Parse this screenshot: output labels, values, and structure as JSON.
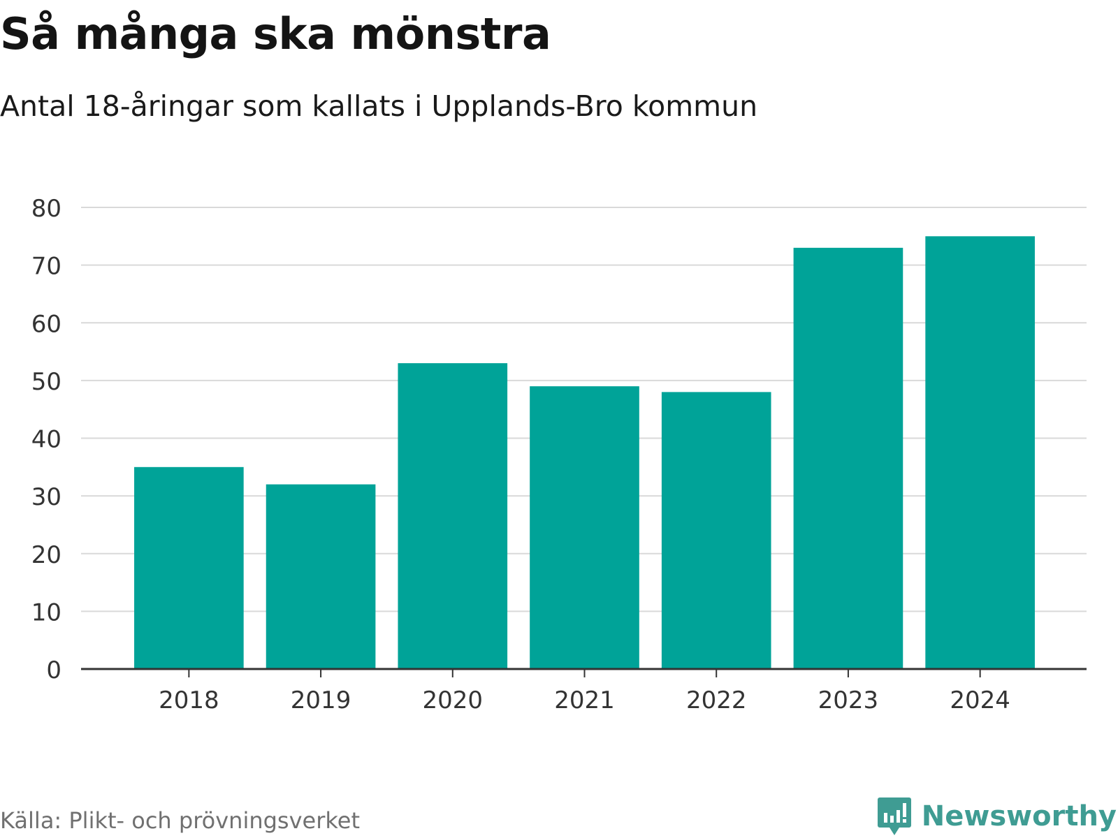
{
  "title": "Så många ska mönstra",
  "subtitle": "Antal 18-åringar som kallats i Upplands-Bro kommun",
  "source": "Källa: Plikt- och prövningsverket",
  "brand": {
    "name": "Newsworthy",
    "icon": "newsworthy-logo-icon",
    "color": "#3f9c93"
  },
  "colors": {
    "bar": "#00a398",
    "grid": "#d9d9d9",
    "axis": "#333333",
    "tick_text": "#333333"
  },
  "chart_data": {
    "type": "bar",
    "title": "Så många ska mönstra",
    "subtitle": "Antal 18-åringar som kallats i Upplands-Bro kommun",
    "categories": [
      "2018",
      "2019",
      "2020",
      "2021",
      "2022",
      "2023",
      "2024"
    ],
    "values": [
      35,
      32,
      53,
      49,
      48,
      73,
      75
    ],
    "xlabel": "",
    "ylabel": "",
    "ylim": [
      0,
      80
    ],
    "yticks": [
      "0",
      "10",
      "20",
      "30",
      "40",
      "50",
      "60",
      "70",
      "80"
    ],
    "grid": true,
    "legend": "none"
  }
}
